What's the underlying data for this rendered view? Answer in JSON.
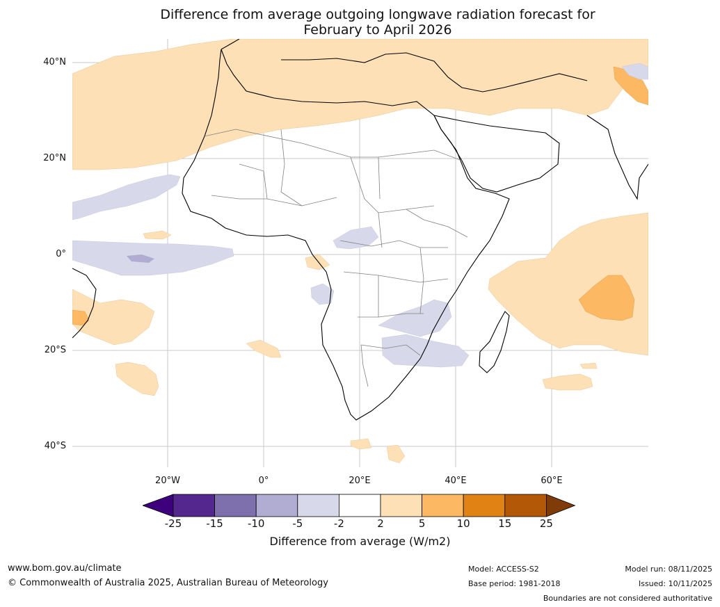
{
  "title": {
    "line1": "Difference from average outgoing longwave radiation forecast for",
    "line2": "February to April 2026"
  },
  "map": {
    "lat_labels": [
      "40°N",
      "20°N",
      "0°",
      "20°S",
      "40°S"
    ],
    "lon_labels": [
      "20°W",
      "0°",
      "20°E",
      "40°E",
      "60°E"
    ]
  },
  "colorbar": {
    "ticks": [
      "-25",
      "-15",
      "-10",
      "-5",
      "-2",
      "2",
      "5",
      "10",
      "15",
      "25"
    ],
    "colors": [
      "#3f007d",
      "#54278f",
      "#7d70ac",
      "#b1acd2",
      "#d8d8eb",
      "#ffffff",
      "#fee0b6",
      "#fdb863",
      "#e08214",
      "#b35806",
      "#7f3b08"
    ],
    "title": "Difference from average (W/m2)"
  },
  "footer": {
    "url": "www.bom.gov.au/climate",
    "copyright": "© Commonwealth of Australia 2025, Australian Bureau of Meteorology",
    "model": "Model: ACCESS-S2",
    "base_period": "Base period: 1981-2018",
    "model_run": "Model run: 08/11/2025",
    "issued": "Issued: 10/11/2025",
    "disclaimer": "Boundaries are not considered authoritative"
  }
}
